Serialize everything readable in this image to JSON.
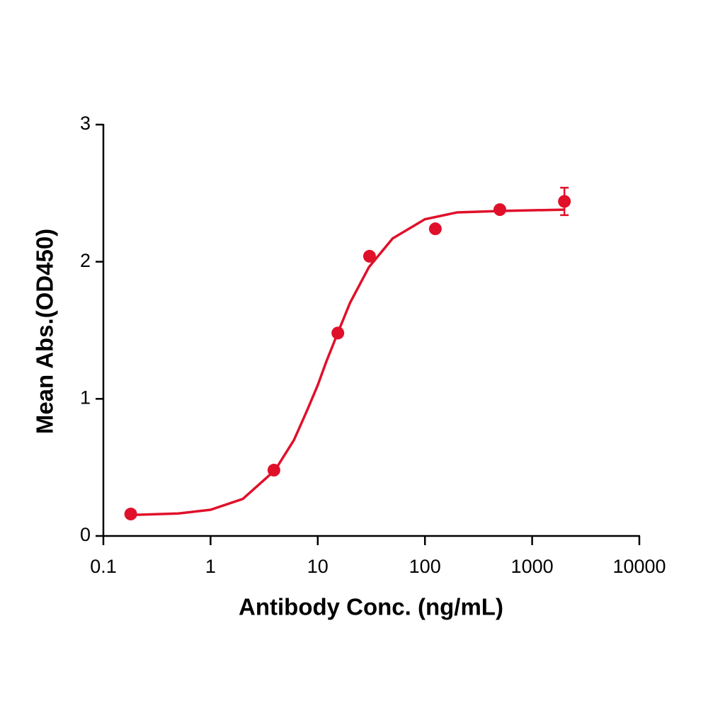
{
  "chart_data": {
    "type": "scatter",
    "x_label": "Antibody Conc. (ng/mL)",
    "y_label": "Mean Abs.(OD450)",
    "x_scale": "log",
    "xlim": [
      0.1,
      10000
    ],
    "xticks": [
      0.1,
      1,
      10,
      100,
      1000,
      10000
    ],
    "ylim": [
      0,
      3
    ],
    "yticks": [
      0,
      1,
      2,
      3
    ],
    "grid": false,
    "series": [
      {
        "type": "scatter",
        "color": "#e0102a",
        "x": [
          0.18,
          3.9,
          15.4,
          30.4,
          125,
          500,
          2000
        ],
        "values": [
          0.16,
          0.48,
          1.48,
          2.04,
          2.24,
          2.38,
          2.44
        ],
        "errors": [
          null,
          null,
          null,
          null,
          null,
          null,
          0.1
        ]
      },
      {
        "type": "line",
        "color": "#e0102a",
        "x": [
          0.18,
          0.5,
          1,
          2,
          4,
          6,
          8,
          10,
          12,
          15,
          20,
          30,
          50,
          100,
          200,
          500,
          2000
        ],
        "values": [
          0.153,
          0.164,
          0.191,
          0.27,
          0.48,
          0.7,
          0.92,
          1.1,
          1.27,
          1.46,
          1.7,
          1.96,
          2.17,
          2.31,
          2.36,
          2.37,
          2.38
        ]
      }
    ]
  }
}
